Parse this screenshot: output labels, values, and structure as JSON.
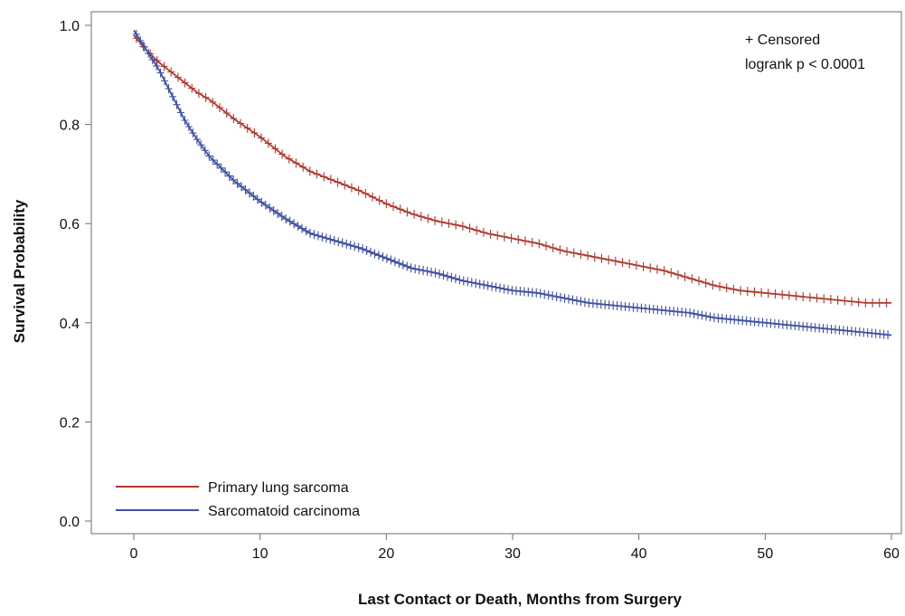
{
  "chart_data": {
    "type": "line",
    "chart_style": "kaplan-meier survival curves with censoring marks",
    "xlabel": "Last Contact or Death, Months from Surgery",
    "ylabel": "Survival Probability",
    "xlim": [
      -1,
      60.5
    ],
    "ylim": [
      -0.02,
      1.03
    ],
    "x_ticks": [
      0,
      10,
      20,
      30,
      40,
      50,
      60
    ],
    "y_ticks": [
      0.0,
      0.2,
      0.4,
      0.6,
      0.8,
      1.0
    ],
    "y_tick_labels": [
      "0.0",
      "0.2",
      "0.4",
      "0.6",
      "0.8",
      "1.0"
    ],
    "grid": false,
    "annotations": [
      "+ Censored",
      "logrank p < 0.0001"
    ],
    "legend_position": "bottom-left",
    "series": [
      {
        "name": "Primary lung sarcoma",
        "color": "#b03a2e",
        "x": [
          0,
          1,
          2,
          3,
          4,
          5,
          6,
          8,
          10,
          12,
          14,
          16,
          18,
          20,
          22,
          24,
          26,
          28,
          30,
          32,
          34,
          36,
          38,
          40,
          42,
          44,
          46,
          48,
          50,
          52,
          54,
          56,
          58,
          60
        ],
        "values": [
          0.98,
          0.95,
          0.925,
          0.905,
          0.885,
          0.865,
          0.85,
          0.81,
          0.775,
          0.735,
          0.705,
          0.685,
          0.665,
          0.64,
          0.62,
          0.605,
          0.595,
          0.58,
          0.57,
          0.56,
          0.545,
          0.535,
          0.525,
          0.515,
          0.505,
          0.49,
          0.475,
          0.465,
          0.46,
          0.455,
          0.45,
          0.445,
          0.44,
          0.44
        ]
      },
      {
        "name": "Sarcomatoid carcinoma",
        "color": "#3f51a3",
        "x": [
          0,
          1,
          2,
          3,
          4,
          5,
          6,
          7,
          8,
          9,
          10,
          12,
          14,
          16,
          18,
          20,
          22,
          24,
          26,
          28,
          30,
          32,
          34,
          36,
          38,
          40,
          42,
          44,
          46,
          48,
          50,
          52,
          54,
          56,
          58,
          60
        ],
        "values": [
          0.99,
          0.95,
          0.91,
          0.86,
          0.81,
          0.77,
          0.735,
          0.71,
          0.685,
          0.665,
          0.645,
          0.61,
          0.58,
          0.565,
          0.55,
          0.53,
          0.51,
          0.5,
          0.485,
          0.475,
          0.465,
          0.46,
          0.45,
          0.44,
          0.435,
          0.43,
          0.425,
          0.42,
          0.41,
          0.405,
          0.4,
          0.395,
          0.39,
          0.385,
          0.38,
          0.375
        ]
      }
    ]
  }
}
